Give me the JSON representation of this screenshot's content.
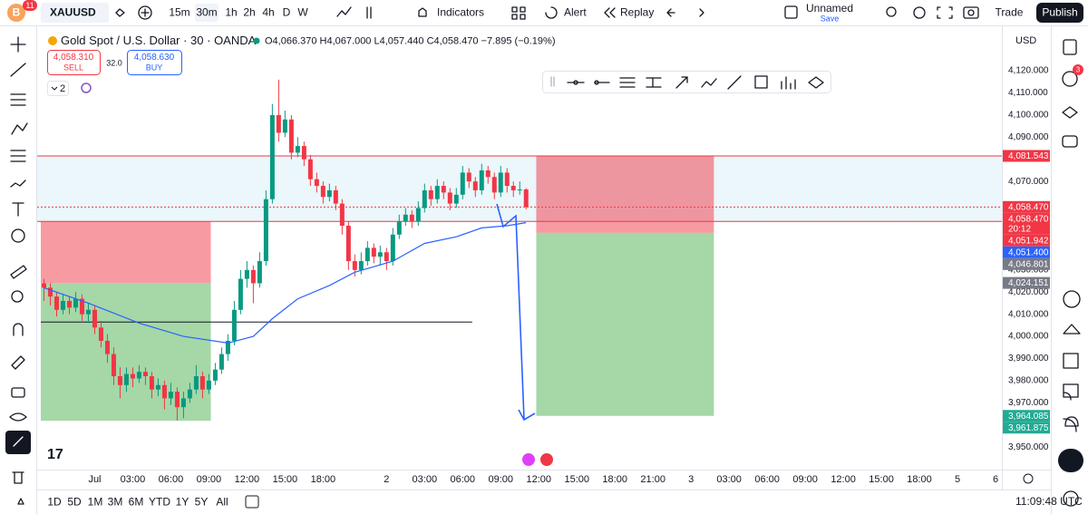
{
  "toolbar": {
    "logo": "B",
    "badge": "11",
    "symbol": "XAUUSD",
    "intervals": [
      "15m",
      "30m",
      "1h",
      "2h",
      "4h",
      "D",
      "W"
    ],
    "indicators": "Indicators",
    "alert": "Alert",
    "replay": "Replay",
    "layout_name": "Unnamed",
    "save": "Save",
    "trade": "Trade",
    "publish": "Publish"
  },
  "legend": {
    "title": "Gold Spot / U.S. Dollar · 30 · OANDA",
    "ohlc": "O4,066.370 H4,067.000 L4,057.440 C4,058.470 −7.895 (−0.19%)",
    "sell_price": "4,058.310",
    "sell": "SELL",
    "spread": "32.0",
    "buy_price": "4,058.630",
    "buy": "BUY",
    "indicator_count": "2"
  },
  "currency": "USD",
  "alerts_badge": "3",
  "ranges": [
    "1D",
    "5D",
    "1M",
    "3M",
    "6M",
    "YTD",
    "1Y",
    "5Y",
    "All"
  ],
  "clock": "11:09:48 UTC",
  "chart": {
    "type": "candlestick",
    "up_color": "#089981",
    "down_color": "#f23645",
    "xlim": [
      -0.5,
      151
    ],
    "ylim": [
      3939,
      4135.6
    ],
    "candles": [
      [
        4024,
        4026,
        4016,
        4022
      ],
      [
        4022,
        4024,
        4014,
        4018
      ],
      [
        4018,
        4020,
        4009,
        4012
      ],
      [
        4012,
        4019,
        4010,
        4016
      ],
      [
        4016,
        4018,
        4010,
        4013
      ],
      [
        4013,
        4020,
        4011,
        4017
      ],
      [
        4017,
        4019,
        4007,
        4010
      ],
      [
        4010,
        4015,
        4006,
        4012
      ],
      [
        4012,
        4014,
        4001,
        4004
      ],
      [
        4004,
        4007,
        3995,
        3998
      ],
      [
        3998,
        4001,
        3988,
        3992
      ],
      [
        3992,
        3995,
        3978,
        3982
      ],
      [
        3982,
        3986,
        3972,
        3978
      ],
      [
        3978,
        3986,
        3975,
        3983
      ],
      [
        3983,
        3986,
        3977,
        3981
      ],
      [
        3981,
        3987,
        3979,
        3984
      ],
      [
        3984,
        3986,
        3978,
        3982
      ],
      [
        3982,
        3984,
        3972,
        3976
      ],
      [
        3976,
        3981,
        3973,
        3978
      ],
      [
        3978,
        3980,
        3967,
        3972
      ],
      [
        3972,
        3979,
        3969,
        3975
      ],
      [
        3975,
        3977,
        3962,
        3968
      ],
      [
        3968,
        3975,
        3963,
        3972
      ],
      [
        3972,
        3979,
        3970,
        3976
      ],
      [
        3976,
        3987,
        3974,
        3982
      ],
      [
        3982,
        3984,
        3972,
        3976
      ],
      [
        3976,
        3983,
        3974,
        3980
      ],
      [
        3980,
        3988,
        3978,
        3985
      ],
      [
        3985,
        3995,
        3983,
        3992
      ],
      [
        3992,
        4001,
        3989,
        3998
      ],
      [
        3998,
        4016,
        3996,
        4012
      ],
      [
        4012,
        4030,
        4010,
        4026
      ],
      [
        4026,
        4034,
        4022,
        4030
      ],
      [
        4030,
        4032,
        4015,
        4024
      ],
      [
        4024,
        4038,
        4022,
        4034
      ],
      [
        4034,
        4066,
        4032,
        4062
      ],
      [
        4062,
        4105,
        4060,
        4100
      ],
      [
        4100,
        4116,
        4088,
        4092
      ],
      [
        4092,
        4102,
        4090,
        4098
      ],
      [
        4098,
        4100,
        4080,
        4083
      ],
      [
        4083,
        4090,
        4081,
        4086
      ],
      [
        4086,
        4088,
        4077,
        4080
      ],
      [
        4080,
        4082,
        4068,
        4071
      ],
      [
        4071,
        4074,
        4065,
        4068
      ],
      [
        4068,
        4070,
        4060,
        4063
      ],
      [
        4063,
        4069,
        4061,
        4066
      ],
      [
        4066,
        4068,
        4057,
        4060
      ],
      [
        4060,
        4062,
        4046,
        4050
      ],
      [
        4050,
        4052,
        4030,
        4034
      ],
      [
        4034,
        4037,
        4027,
        4030
      ],
      [
        4030,
        4038,
        4028,
        4034
      ],
      [
        4034,
        4043,
        4032,
        4040
      ],
      [
        4040,
        4042,
        4033,
        4036
      ],
      [
        4036,
        4041,
        4032,
        4038
      ],
      [
        4038,
        4040,
        4030,
        4034
      ],
      [
        4034,
        4049,
        4032,
        4046
      ],
      [
        4046,
        4055,
        4044,
        4052
      ],
      [
        4052,
        4058,
        4050,
        4055
      ],
      [
        4055,
        4057,
        4049,
        4052
      ],
      [
        4052,
        4061,
        4050,
        4058
      ],
      [
        4058,
        4069,
        4056,
        4066
      ],
      [
        4066,
        4068,
        4059,
        4062
      ],
      [
        4062,
        4071,
        4060,
        4068
      ],
      [
        4068,
        4070,
        4062,
        4065
      ],
      [
        4065,
        4067,
        4057,
        4060
      ],
      [
        4060,
        4067,
        4058,
        4064
      ],
      [
        4064,
        4077,
        4062,
        4074
      ],
      [
        4074,
        4076,
        4067,
        4070
      ],
      [
        4070,
        4072,
        4063,
        4066
      ],
      [
        4066,
        4078,
        4064,
        4075
      ],
      [
        4075,
        4077,
        4069,
        4072
      ],
      [
        4072,
        4074,
        4062,
        4065
      ],
      [
        4065,
        4077,
        4063,
        4074
      ],
      [
        4074,
        4076,
        4065,
        4068
      ],
      [
        4068,
        4070,
        4063,
        4066
      ],
      [
        4066,
        4070,
        4064,
        4066.37
      ],
      [
        4066.37,
        4067,
        4057.44,
        4058.47
      ]
    ],
    "ma": {
      "color": "#2962ff",
      "x": [
        0,
        7,
        15,
        22,
        29,
        33,
        36,
        40,
        45,
        49,
        55,
        60,
        65,
        69,
        73,
        76
      ],
      "values": [
        4022,
        4015,
        4006,
        4000,
        3997,
        4000,
        4008,
        4017,
        4023,
        4029,
        4034,
        4042,
        4045,
        4049,
        4050,
        4051.4
      ]
    },
    "band": [
      4051.942,
      4081.543
    ],
    "hlines": [
      {
        "value": 4081.543,
        "color": "#f23645"
      },
      {
        "value": 4051.942,
        "color": "#f23645"
      },
      {
        "value": 4006.5,
        "color": "#131722",
        "x": [
          -0.5,
          67.5
        ]
      }
    ],
    "positions": [
      {
        "x": [
          -0.5,
          26.3
        ],
        "stop": 4052,
        "entry": 4024.151,
        "target": 3961.875
      },
      {
        "x": [
          77.6,
          105.6
        ],
        "stop": 4081.543,
        "entry": 4046.801,
        "target": 3964.085
      }
    ],
    "yticks": [
      {
        "value": 4120,
        "label": "4,120.000"
      },
      {
        "value": 4110,
        "label": "4,110.000"
      },
      {
        "value": 4100,
        "label": "4,100.000"
      },
      {
        "value": 4090,
        "label": "4,090.000"
      },
      {
        "value": 4070,
        "label": "4,070.000"
      },
      {
        "value": 4030,
        "label": "4,030.000"
      },
      {
        "value": 4020,
        "label": "4,020.000"
      },
      {
        "value": 4010,
        "label": "4,010.000"
      },
      {
        "value": 4000,
        "label": "4,000.000"
      },
      {
        "value": 3990,
        "label": "3,990.000"
      },
      {
        "value": 3980,
        "label": "3,980.000"
      },
      {
        "value": 3970,
        "label": "3,970.000"
      },
      {
        "value": 3950,
        "label": "3,950.000"
      }
    ],
    "xticks": [
      {
        "value": 8,
        "label": "Jul"
      },
      {
        "value": 14,
        "label": "03:00"
      },
      {
        "value": 20,
        "label": "06:00"
      },
      {
        "value": 26,
        "label": "09:00"
      },
      {
        "value": 32,
        "label": "12:00"
      },
      {
        "value": 38,
        "label": "15:00"
      },
      {
        "value": 44,
        "label": "18:00"
      },
      {
        "value": 54,
        "label": "2"
      },
      {
        "value": 60,
        "label": "03:00"
      },
      {
        "value": 66,
        "label": "06:00"
      },
      {
        "value": 72,
        "label": "09:00"
      },
      {
        "value": 78,
        "label": "12:00"
      },
      {
        "value": 84,
        "label": "15:00"
      },
      {
        "value": 90,
        "label": "18:00"
      },
      {
        "value": 96,
        "label": "21:00"
      },
      {
        "value": 102,
        "label": "3"
      },
      {
        "value": 108,
        "label": "03:00"
      },
      {
        "value": 114,
        "label": "06:00"
      },
      {
        "value": 120,
        "label": "09:00"
      },
      {
        "value": 126,
        "label": "12:00"
      },
      {
        "value": 132,
        "label": "15:00"
      },
      {
        "value": 138,
        "label": "18:00"
      },
      {
        "value": 144,
        "label": "5"
      },
      {
        "value": 150,
        "label": "6"
      }
    ],
    "price_labels": [
      {
        "value": 4081.543,
        "label": "4,081.543",
        "color": "#f23645"
      },
      {
        "value": 4058.47,
        "label": "4,058.470",
        "color": "#f23645"
      },
      {
        "value": 4058.47,
        "label": "4,058.470",
        "countdown": "20:12",
        "color": "#f23645"
      },
      {
        "value": 4051.942,
        "label": "4,051.942",
        "color": "#f23645"
      },
      {
        "value": 4051.4,
        "label": "4,051.400",
        "color": "#2962ff"
      },
      {
        "value": 4046.801,
        "label": "4,046.801",
        "color": "#787b86"
      },
      {
        "value": 4024.151,
        "label": "4,024.151",
        "color": "#787b86"
      },
      {
        "value": 3964.085,
        "label": "3,964.085",
        "color": "#22ab94"
      },
      {
        "value": 3961.875,
        "label": "3,961.875",
        "color": "#22ab94"
      }
    ]
  }
}
